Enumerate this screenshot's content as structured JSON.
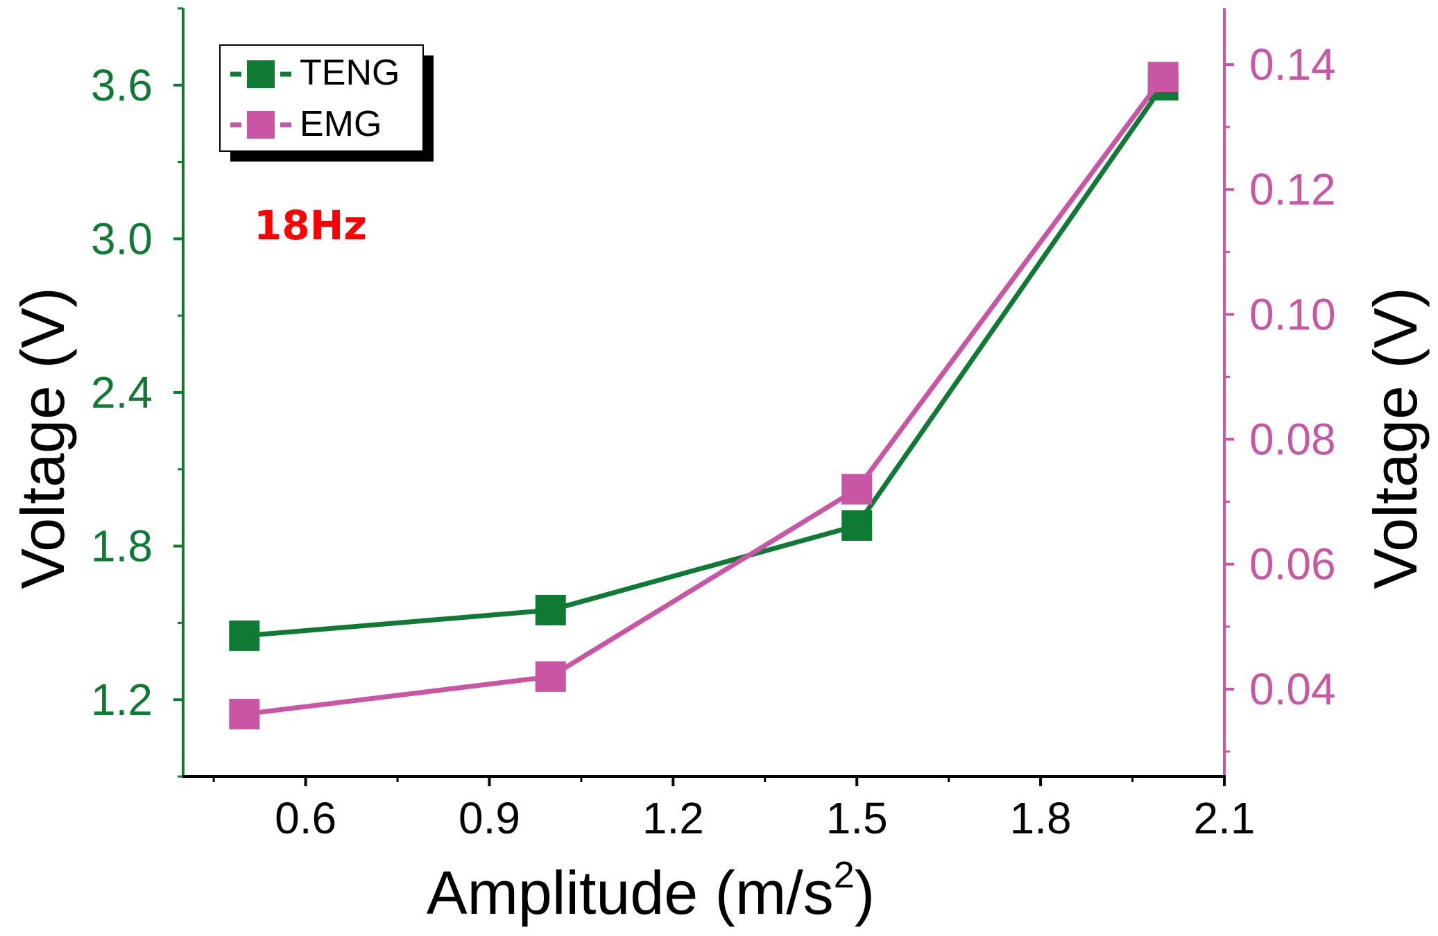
{
  "chart_data": {
    "type": "line",
    "annotation": "18Hz",
    "xlabel": "Amplitude (m/s",
    "xlabel_sup": "2",
    "xlabel_tail": ")",
    "ylabel_left": "Voltage (V)",
    "ylabel_right": "Voltage (V)",
    "xlim": [
      0.4,
      2.1
    ],
    "ylim_left": [
      0.9,
      3.9
    ],
    "ylim_right": [
      0.026,
      0.149
    ],
    "x_ticks": [
      0.6,
      0.9,
      1.2,
      1.5,
      1.8,
      2.1
    ],
    "x_tick_labels": [
      "0.6",
      "0.9",
      "1.2",
      "1.5",
      "1.8",
      "2.1"
    ],
    "y_left_ticks": [
      1.2,
      1.8,
      2.4,
      3.0,
      3.6
    ],
    "y_left_tick_labels": [
      "1.2",
      "1.8",
      "2.4",
      "3.0",
      "3.6"
    ],
    "y_right_ticks": [
      0.04,
      0.06,
      0.08,
      0.1,
      0.12,
      0.14
    ],
    "y_right_tick_labels": [
      "0.04",
      "0.06",
      "0.08",
      "0.10",
      "0.12",
      "0.14"
    ],
    "series": [
      {
        "name": "TENG",
        "axis": "left",
        "color": "#0e7a34",
        "x": [
          0.5,
          1.0,
          1.5,
          2.0
        ],
        "values": [
          1.45,
          1.55,
          1.88,
          3.6
        ]
      },
      {
        "name": "EMG",
        "axis": "right",
        "color": "#c955a5",
        "x": [
          0.5,
          1.0,
          1.5,
          2.0
        ],
        "values": [
          0.036,
          0.042,
          0.072,
          0.138
        ]
      }
    ],
    "legend_position": "top-left",
    "colors": {
      "left_axis": "#0e7a34",
      "right_axis": "#c955a5",
      "annotation": "#ff0000",
      "text": "#000000"
    }
  }
}
